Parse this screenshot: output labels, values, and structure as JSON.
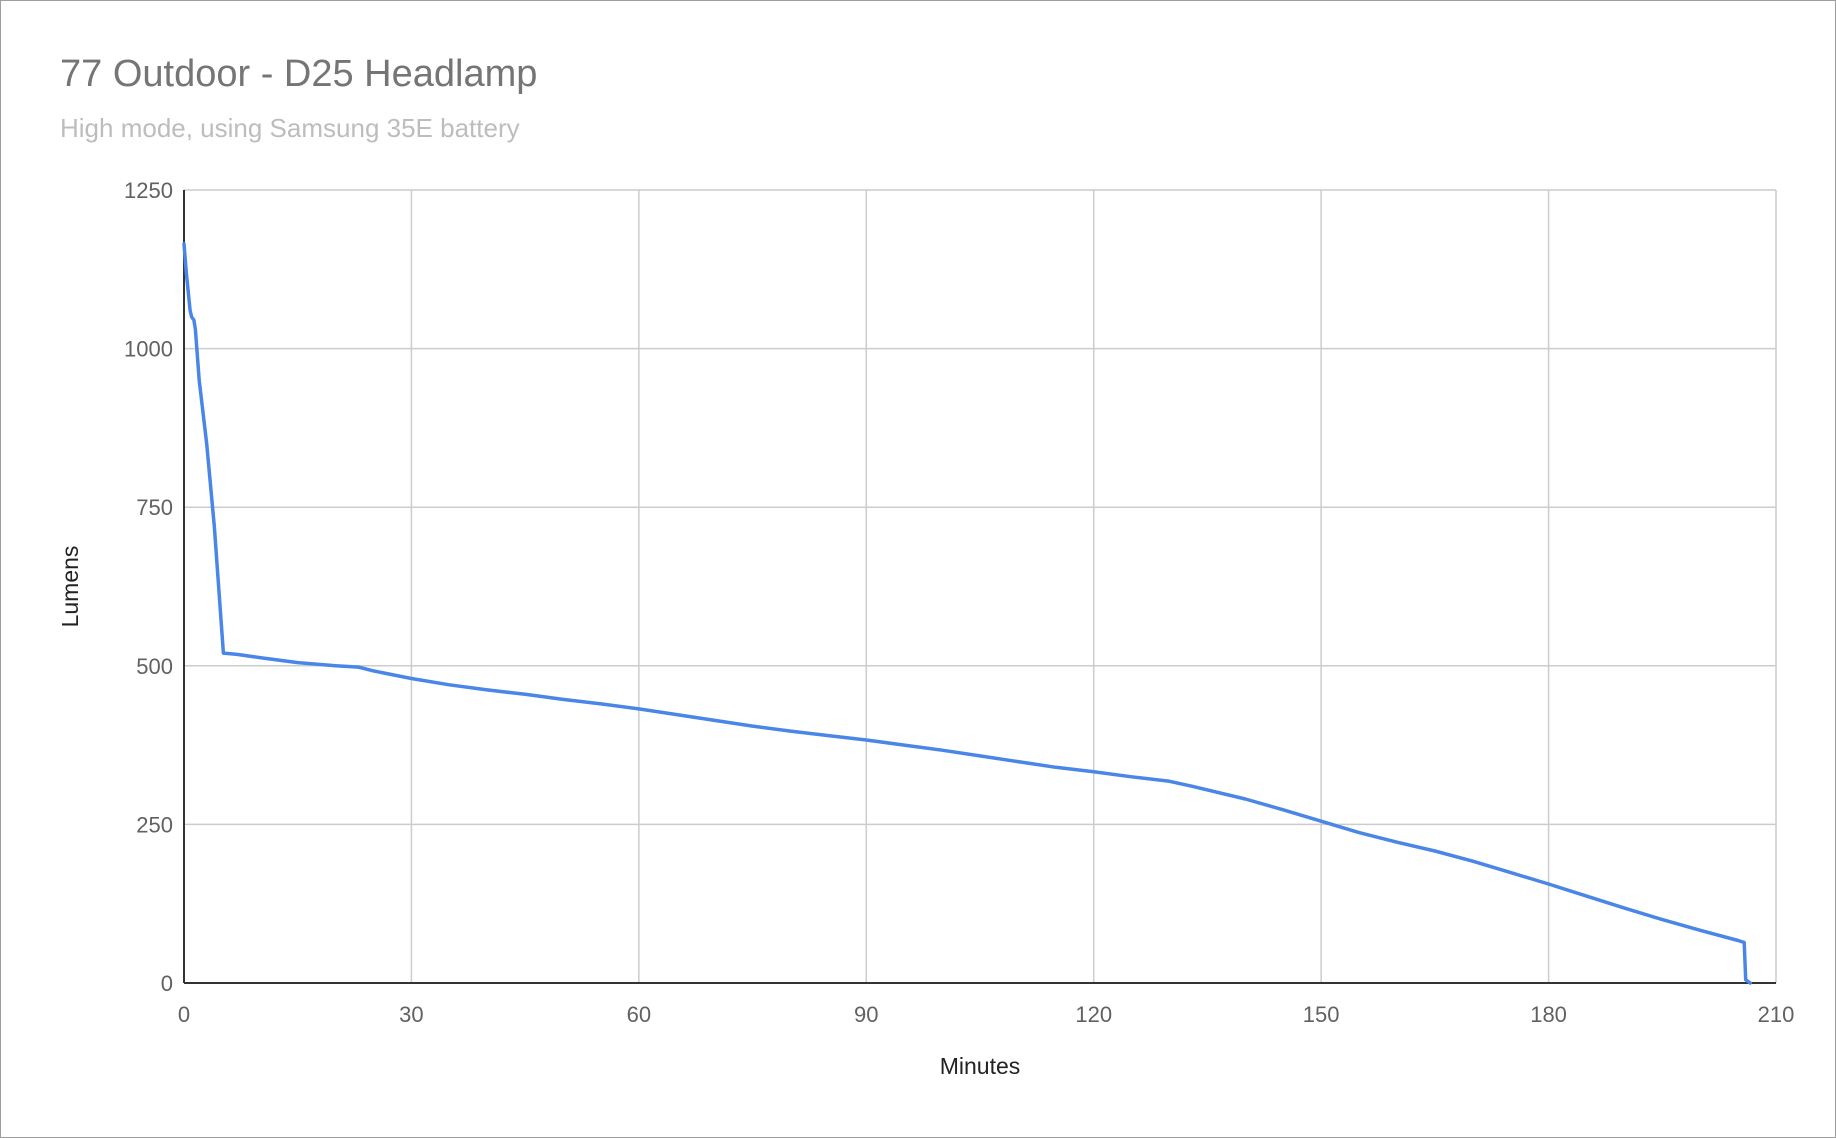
{
  "chart_data": {
    "type": "line",
    "title": "77 Outdoor - D25 Headlamp",
    "subtitle": "High mode, using Samsung 35E battery",
    "xlabel": "Minutes",
    "ylabel": "Lumens",
    "xlim": [
      0,
      210
    ],
    "ylim": [
      0,
      1250
    ],
    "x_ticks": [
      0,
      30,
      60,
      90,
      120,
      150,
      180,
      210
    ],
    "y_ticks": [
      0,
      250,
      500,
      750,
      1000,
      1250
    ],
    "x_tick_labels": [
      "0",
      "30",
      "60",
      "90",
      "120",
      "150",
      "180",
      "210"
    ],
    "y_tick_labels": [
      "0",
      "250",
      "500",
      "750",
      "1000",
      "1250"
    ],
    "grid": true,
    "series": [
      {
        "color": "#4a86e8",
        "x": [
          0,
          0.3,
          0.8,
          1.0,
          1.3,
          1.5,
          2.0,
          3.0,
          4.0,
          5.2,
          7,
          10,
          15,
          20,
          23,
          25,
          30,
          35,
          40,
          45,
          50,
          55,
          60,
          65,
          70,
          75,
          80,
          85,
          90,
          95,
          100,
          105,
          110,
          115,
          120,
          125,
          130,
          133,
          140,
          145,
          150,
          155,
          160,
          165,
          170,
          175,
          180,
          185,
          190,
          195,
          200,
          205,
          205.8,
          206.0,
          206.6
        ],
        "y": [
          1165,
          1120,
          1060,
          1050,
          1045,
          1030,
          950,
          850,
          720,
          520,
          518,
          513,
          505,
          500,
          498,
          492,
          480,
          470,
          462,
          455,
          447,
          440,
          432,
          423,
          414,
          405,
          397,
          390,
          383,
          375,
          367,
          358,
          349,
          340,
          333,
          325,
          318,
          310,
          290,
          273,
          255,
          237,
          222,
          208,
          192,
          174,
          156,
          137,
          118,
          100,
          83,
          67,
          64,
          5,
          0
        ]
      }
    ]
  }
}
